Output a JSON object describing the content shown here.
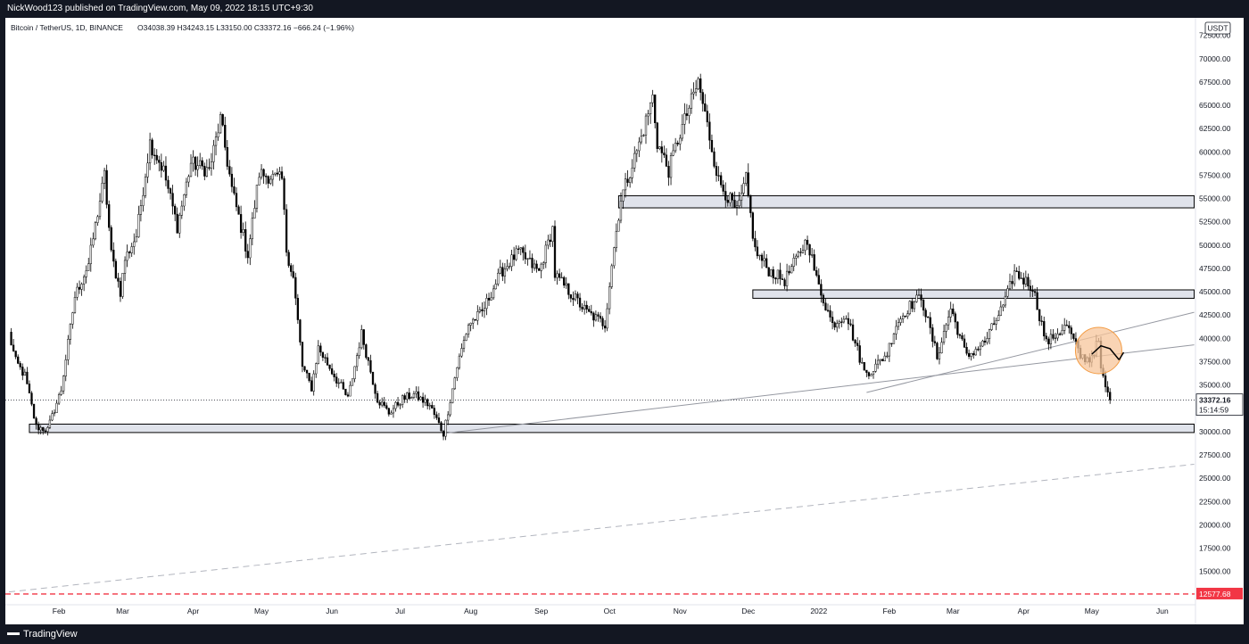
{
  "header": {
    "published_by": "NickWood123 published on TradingView.com, May 09, 2022 18:15 UTC+9:30"
  },
  "footer": {
    "brand": "TradingView",
    "logo_icon": "tradingview-logo-icon"
  },
  "colors": {
    "up": "#ffffff",
    "down": "#000000",
    "wick": "#000000",
    "zone_fill": "#e0e3eb",
    "trendline": "#9598a1",
    "dashed_trendline": "#b2b5be",
    "highlight_circle": "#f7c59b",
    "support_line": "#f23645"
  },
  "chart_data": {
    "type": "candlestick",
    "symbol_line": "Bitcoin / TetherUS, 1D, BINANCE",
    "ohlc": {
      "open": "O34038.39",
      "high": "H34243.15",
      "low": "L33150.00",
      "close": "C33372.16",
      "change": "−666.24 (−1.96%)"
    },
    "currency": "USDT",
    "x_axis": {
      "start_date": "2021-01-15",
      "ticks": [
        {
          "label": "Feb",
          "date": "2021-02-01"
        },
        {
          "label": "Mar",
          "date": "2021-03-01"
        },
        {
          "label": "Apr",
          "date": "2021-04-01"
        },
        {
          "label": "May",
          "date": "2021-05-01"
        },
        {
          "label": "Jun",
          "date": "2021-06-01"
        },
        {
          "label": "Jul",
          "date": "2021-07-01"
        },
        {
          "label": "Aug",
          "date": "2021-08-01"
        },
        {
          "label": "Sep",
          "date": "2021-09-01"
        },
        {
          "label": "Oct",
          "date": "2021-10-01"
        },
        {
          "label": "Nov",
          "date": "2021-11-01"
        },
        {
          "label": "Dec",
          "date": "2021-12-01"
        },
        {
          "label": "2022",
          "date": "2022-01-01"
        },
        {
          "label": "Feb",
          "date": "2022-02-01"
        },
        {
          "label": "Mar",
          "date": "2022-03-01"
        },
        {
          "label": "Apr",
          "date": "2022-04-01"
        },
        {
          "label": "May",
          "date": "2022-05-01"
        },
        {
          "label": "Jun",
          "date": "2022-06-01"
        }
      ]
    },
    "y_axis": {
      "range": [
        12000,
        74000
      ],
      "ticks": [
        72500,
        70000,
        67500,
        65000,
        62500,
        60000,
        57500,
        55000,
        52500,
        50000,
        47500,
        45000,
        42500,
        40000,
        37500,
        35000,
        32500,
        30000,
        27500,
        25000,
        22500,
        20000,
        17500,
        15000
      ],
      "tick_labels": [
        "72500.00",
        "70000.00",
        "67500.00",
        "65000.00",
        "62500.00",
        "60000.00",
        "57500.00",
        "55000.00",
        "52500.00",
        "50000.00",
        "47500.00",
        "45000.00",
        "42500.00",
        "40000.00",
        "37500.00",
        "35000.00",
        "32500.00",
        "30000.00",
        "27500.00",
        "25000.00",
        "22500.00",
        "20000.00",
        "17500.00",
        "15000.00"
      ]
    },
    "last_price": {
      "value": 33372.16,
      "label": "33372.16",
      "countdown": "15:14:59"
    },
    "support_level": {
      "value": 12577.68,
      "label": "12577.68"
    },
    "price_anchors": [
      [
        "2021-01-10",
        40500
      ],
      [
        "2021-01-13",
        37500
      ],
      [
        "2021-01-17",
        36000
      ],
      [
        "2021-01-22",
        30500
      ],
      [
        "2021-01-27",
        30200
      ],
      [
        "2021-02-02",
        34500
      ],
      [
        "2021-02-08",
        44500
      ],
      [
        "2021-02-14",
        48000
      ],
      [
        "2021-02-21",
        57500
      ],
      [
        "2021-02-24",
        49000
      ],
      [
        "2021-02-28",
        45000
      ],
      [
        "2021-03-02",
        48500
      ],
      [
        "2021-03-07",
        51000
      ],
      [
        "2021-03-13",
        61000
      ],
      [
        "2021-03-19",
        58000
      ],
      [
        "2021-03-25",
        52000
      ],
      [
        "2021-03-31",
        58800
      ],
      [
        "2021-04-08",
        58000
      ],
      [
        "2021-04-13",
        63500
      ],
      [
        "2021-04-18",
        56000
      ],
      [
        "2021-04-25",
        49000
      ],
      [
        "2021-04-30",
        57700
      ],
      [
        "2021-05-10",
        57000
      ],
      [
        "2021-05-12",
        49500
      ],
      [
        "2021-05-15",
        46500
      ],
      [
        "2021-05-19",
        37000
      ],
      [
        "2021-05-23",
        34700
      ],
      [
        "2021-05-26",
        39000
      ],
      [
        "2021-06-08",
        33500
      ],
      [
        "2021-06-14",
        40500
      ],
      [
        "2021-06-21",
        33500
      ],
      [
        "2021-06-26",
        32000
      ],
      [
        "2021-07-02",
        33500
      ],
      [
        "2021-07-07",
        34000
      ],
      [
        "2021-07-14",
        32800
      ],
      [
        "2021-07-20",
        29800
      ],
      [
        "2021-07-26",
        37000
      ],
      [
        "2021-07-31",
        41500
      ],
      [
        "2021-08-06",
        42800
      ],
      [
        "2021-08-14",
        47000
      ],
      [
        "2021-08-22",
        49300
      ],
      [
        "2021-08-31",
        47100
      ],
      [
        "2021-09-06",
        51800
      ],
      [
        "2021-09-07",
        46800
      ],
      [
        "2021-09-21",
        42800
      ],
      [
        "2021-09-29",
        41500
      ],
      [
        "2021-10-02",
        48000
      ],
      [
        "2021-10-06",
        55000
      ],
      [
        "2021-10-15",
        61600
      ],
      [
        "2021-10-20",
        65900
      ],
      [
        "2021-10-22",
        61000
      ],
      [
        "2021-10-27",
        58000
      ],
      [
        "2021-10-31",
        61300
      ],
      [
        "2021-11-09",
        67500
      ],
      [
        "2021-11-12",
        64000
      ],
      [
        "2021-11-18",
        56900
      ],
      [
        "2021-11-26",
        53500
      ],
      [
        "2021-11-30",
        57000
      ],
      [
        "2021-12-04",
        49400
      ],
      [
        "2021-12-10",
        47300
      ],
      [
        "2021-12-17",
        46200
      ],
      [
        "2021-12-27",
        50700
      ],
      [
        "2021-12-31",
        46300
      ],
      [
        "2022-01-07",
        41500
      ],
      [
        "2022-01-13",
        42600
      ],
      [
        "2022-01-21",
        36400
      ],
      [
        "2022-01-24",
        36500
      ],
      [
        "2022-01-31",
        38400
      ],
      [
        "2022-02-04",
        41500
      ],
      [
        "2022-02-10",
        43500
      ],
      [
        "2022-02-15",
        44500
      ],
      [
        "2022-02-22",
        38000
      ],
      [
        "2022-02-28",
        43200
      ],
      [
        "2022-03-07",
        38000
      ],
      [
        "2022-03-15",
        39600
      ],
      [
        "2022-03-24",
        44000
      ],
      [
        "2022-03-28",
        47100
      ],
      [
        "2022-04-05",
        45500
      ],
      [
        "2022-04-11",
        39500
      ],
      [
        "2022-04-20",
        41400
      ],
      [
        "2022-04-26",
        38100
      ],
      [
        "2022-04-30",
        37700
      ],
      [
        "2022-05-04",
        39700
      ],
      [
        "2022-05-05",
        36500
      ],
      [
        "2022-05-08",
        34000
      ],
      [
        "2022-05-09",
        33400
      ]
    ],
    "zones": [
      {
        "date_from": "2021-10-05",
        "date_to": "2022-06-15",
        "price_low": 54000,
        "price_high": 55300
      },
      {
        "date_from": "2021-12-03",
        "date_to": "2022-06-15",
        "price_low": 44300,
        "price_high": 45200
      },
      {
        "date_from": "2021-01-19",
        "date_to": "2022-06-15",
        "price_low": 29900,
        "price_high": 30800
      }
    ],
    "trendlines": [
      {
        "from": [
          "2021-07-20",
          29800
        ],
        "to": [
          "2022-06-15",
          39300
        ],
        "style": "solid"
      },
      {
        "from": [
          "2022-01-22",
          34200
        ],
        "to": [
          "2022-06-15",
          42800
        ],
        "style": "solid"
      },
      {
        "from": [
          "2021-01-10",
          12800
        ],
        "to": [
          "2022-06-15",
          26500
        ],
        "style": "dashed"
      }
    ],
    "projection": {
      "circle_center": [
        "2022-05-04",
        38700
      ],
      "path": [
        [
          "2022-05-01",
          38300
        ],
        [
          "2022-05-05",
          39200
        ],
        [
          "2022-05-09",
          38900
        ],
        [
          "2022-05-13",
          37700
        ]
      ],
      "arrow_to": [
        "2022-05-15",
        38500
      ]
    }
  }
}
